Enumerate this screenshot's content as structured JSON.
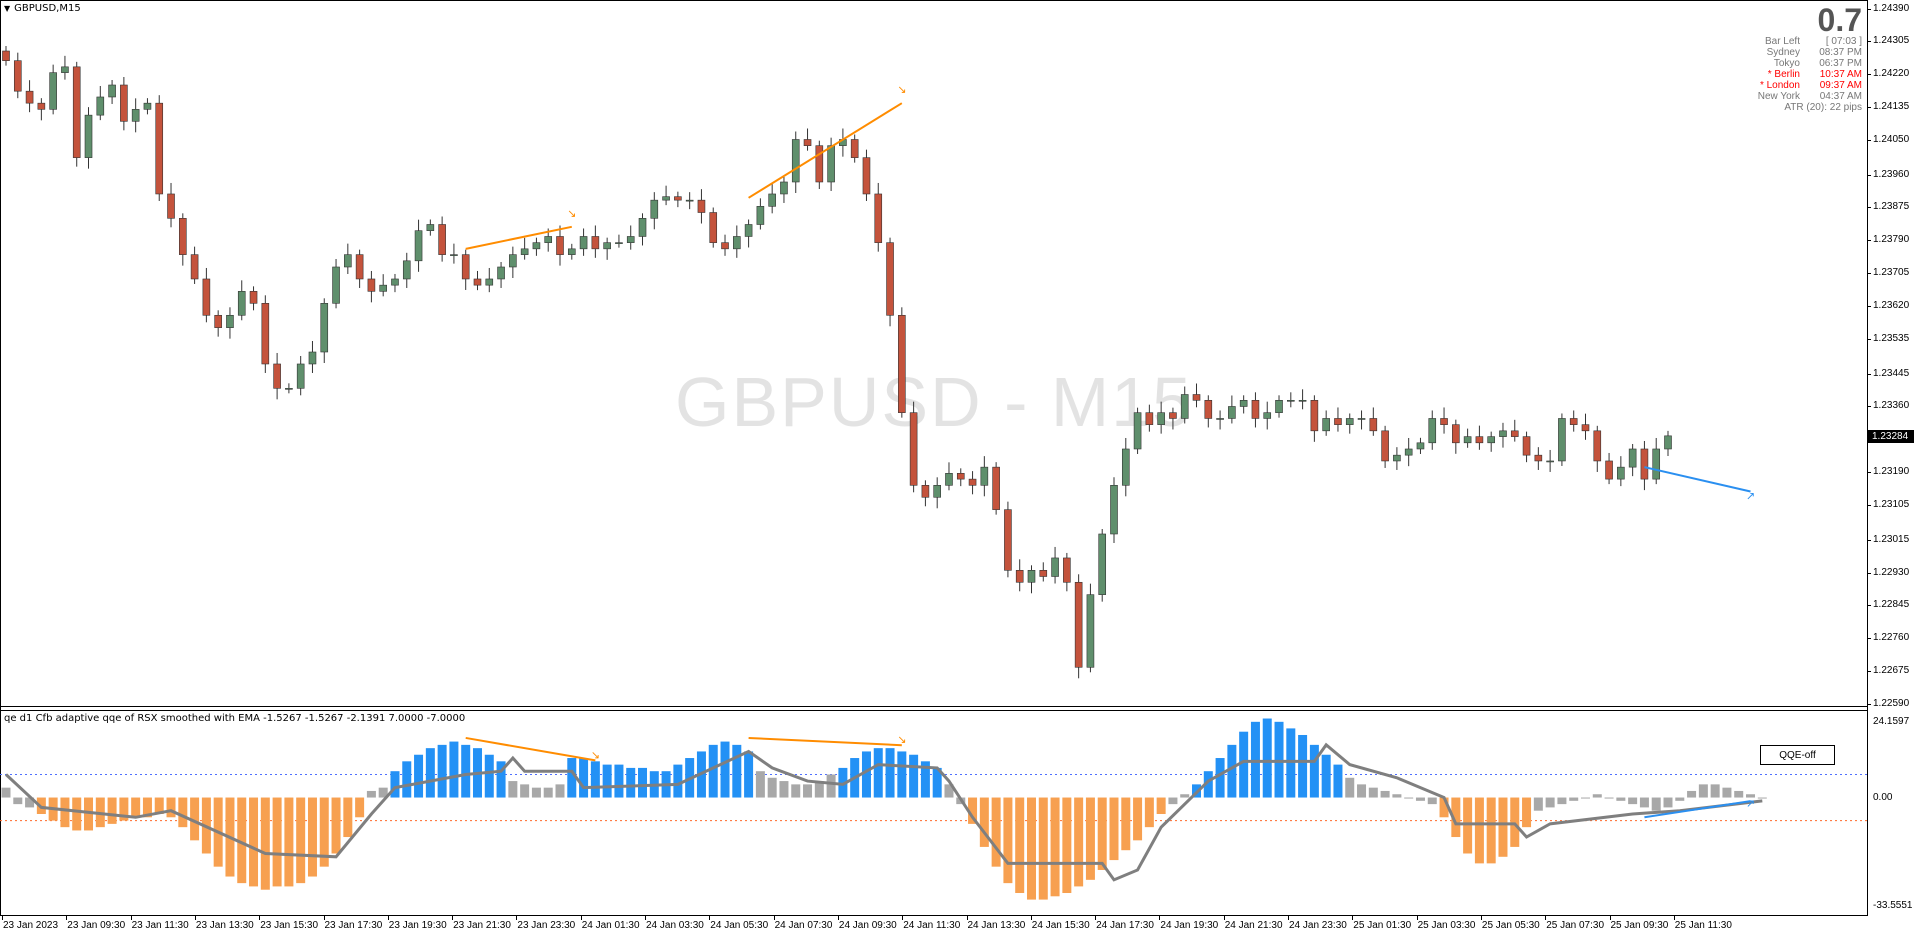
{
  "window": {
    "symbol_title": "GBPUSD,M15",
    "watermark": "GBPUSD - M15"
  },
  "info_panel": {
    "spread": "0.7",
    "rows": [
      {
        "label": "Bar Left",
        "value": "[ 07:03 ]",
        "highlight": false
      },
      {
        "label": "Sydney",
        "value": "08:37 PM",
        "highlight": false
      },
      {
        "label": "Tokyo",
        "value": "06:37 PM",
        "highlight": false
      },
      {
        "label": "* Berlin",
        "value": "10:37 AM",
        "highlight": true
      },
      {
        "label": "* London",
        "value": "09:37 AM",
        "highlight": true
      },
      {
        "label": "New York",
        "value": "04:37 AM",
        "highlight": false
      }
    ],
    "atr": "ATR (20): 22 pips"
  },
  "price_axis": {
    "ticks": [
      "1.24390",
      "1.24305",
      "1.24220",
      "1.24135",
      "1.24050",
      "1.23960",
      "1.23875",
      "1.23790",
      "1.23705",
      "1.23620",
      "1.23535",
      "1.23445",
      "1.23360",
      "1.23190",
      "1.23105",
      "1.23015",
      "1.22930",
      "1.22845",
      "1.22760",
      "1.22675",
      "1.22590"
    ],
    "current_price": "1.23284",
    "range": [
      1.2259,
      1.2439
    ]
  },
  "time_axis": {
    "labels": [
      "23 Jan 2023",
      "23 Jan 09:30",
      "23 Jan 11:30",
      "23 Jan 13:30",
      "23 Jan 15:30",
      "23 Jan 17:30",
      "23 Jan 19:30",
      "23 Jan 21:30",
      "23 Jan 23:30",
      "24 Jan 01:30",
      "24 Jan 03:30",
      "24 Jan 05:30",
      "24 Jan 07:30",
      "24 Jan 09:30",
      "24 Jan 11:30",
      "24 Jan 13:30",
      "24 Jan 15:30",
      "24 Jan 17:30",
      "24 Jan 19:30",
      "24 Jan 21:30",
      "24 Jan 23:30",
      "25 Jan 01:30",
      "25 Jan 03:30",
      "25 Jan 05:30",
      "25 Jan 07:30",
      "25 Jan 09:30",
      "25 Jan 11:30"
    ]
  },
  "colors": {
    "bull": "#5f8f6c",
    "bear": "#c4533c",
    "hist_up": "#2391f5",
    "hist_down": "#f7a050",
    "hist_neutral": "#a8a8a8",
    "signal_line": "#7f7f7f",
    "divergence_bear": "#ff8c00",
    "divergence_bull": "#2a8ff0",
    "level_up": "#4f6fff",
    "level_down": "#ff6a2a"
  },
  "chart_data": [
    {
      "type": "candlestick",
      "title": "GBPUSD,M15",
      "closes": [
        1.24255,
        1.24176,
        1.24145,
        1.24129,
        1.24224,
        1.24239,
        1.24004,
        1.24114,
        1.24161,
        1.24192,
        1.24098,
        1.24129,
        1.24145,
        1.2391,
        1.23847,
        1.23753,
        1.2369,
        1.23596,
        1.23564,
        1.23596,
        1.23658,
        1.23627,
        1.2347,
        1.23407,
        1.23407,
        1.2347,
        1.23501,
        1.23627,
        1.23721,
        1.23753,
        1.2369,
        1.23658,
        1.23674,
        1.2369,
        1.23737,
        1.23815,
        1.23831,
        1.23753,
        1.23753,
        1.2369,
        1.23674,
        1.2369,
        1.23721,
        1.23753,
        1.23768,
        1.23784,
        1.238,
        1.23753,
        1.23768,
        1.238,
        1.23768,
        1.23784,
        1.23784,
        1.238,
        1.23847,
        1.23894,
        1.23903,
        1.23894,
        1.23894,
        1.23862,
        1.23784,
        1.23768,
        1.238,
        1.23831,
        1.23878,
        1.2391,
        1.23941,
        1.24051,
        1.24035,
        1.23941,
        1.24035,
        1.24051,
        1.24004,
        1.2391,
        1.23784,
        1.23596,
        1.23344,
        1.23156,
        1.23125,
        1.23156,
        1.23187,
        1.23172,
        1.23156,
        1.23203,
        1.23093,
        1.22936,
        1.22905,
        1.22936,
        1.2292,
        1.22968,
        1.22905,
        1.22685,
        1.22873,
        1.2303,
        1.23156,
        1.2325,
        1.23344,
        1.23313,
        1.23344,
        1.23329,
        1.23391,
        1.23376,
        1.23329,
        1.23329,
        1.2336,
        1.23376,
        1.23329,
        1.23344,
        1.23376,
        1.23376,
        1.23376,
        1.23297,
        1.23329,
        1.23313,
        1.23329,
        1.23329,
        1.23297,
        1.23219,
        1.23234,
        1.2325,
        1.23266,
        1.23329,
        1.23313,
        1.23266,
        1.23282,
        1.23266,
        1.23282,
        1.23297,
        1.23282,
        1.23234,
        1.23219,
        1.23219,
        1.23329,
        1.23313,
        1.23297,
        1.23219,
        1.23172,
        1.23203,
        1.2325,
        1.23172,
        1.2325,
        1.23284
      ],
      "first_open": 1.2428,
      "divergences": [
        {
          "from": [
            39,
            1.23768
          ],
          "to": [
            48,
            1.23825
          ],
          "kind": "bearish"
        },
        {
          "from": [
            63,
            1.239
          ],
          "to": [
            76,
            1.24145
          ],
          "kind": "bearish"
        },
        {
          "from": [
            139,
            1.23203
          ],
          "to": [
            148,
            1.2314
          ],
          "kind": "bullish"
        }
      ]
    },
    {
      "type": "bar+line",
      "title": "qe d1 Cfb adaptive qqe of RSX smoothed with EMA -1.5267 -1.5267 -2.1391 7.0000 -7.0000",
      "ylim": [
        -33.5551,
        24.1597
      ],
      "ytick_labels": [
        "24.1597",
        "0.00",
        "-33.5551"
      ],
      "levels": [
        7.0,
        -7.0
      ],
      "histogram": [
        3,
        -2,
        -3,
        -5,
        -7,
        -9,
        -10,
        -10,
        -9,
        -8,
        -7,
        -6,
        -6,
        -5,
        -6,
        -9,
        -13,
        -17,
        -21,
        -24,
        -26,
        -27,
        -28,
        -27,
        -27,
        -26,
        -24,
        -21,
        -17,
        -12,
        -6,
        2,
        3,
        8,
        11,
        13,
        15,
        16,
        17,
        16,
        15,
        13,
        11,
        5,
        4,
        3,
        3,
        4,
        12,
        12,
        11,
        10,
        10,
        9,
        9,
        8,
        8,
        10,
        12,
        14,
        16,
        17,
        16,
        14,
        8,
        6,
        5,
        4,
        4,
        5,
        7,
        9,
        12,
        14,
        15,
        15,
        14,
        13,
        11,
        9,
        4,
        -2,
        -8,
        -15,
        -21,
        -26,
        -29,
        -31,
        -31,
        -30,
        -29,
        -27,
        -25,
        -22,
        -19,
        -16,
        -13,
        -9,
        -5,
        -2,
        1,
        4,
        8,
        12,
        16,
        20,
        23,
        24,
        23,
        21,
        19,
        16,
        13,
        10,
        6,
        4,
        3,
        2,
        1,
        0,
        -1,
        -2,
        -6,
        -12,
        -17,
        -20,
        -20,
        -18,
        -15,
        -9,
        -4,
        -3,
        -2,
        -1,
        0,
        1,
        0,
        -1,
        -2,
        -3,
        -4,
        -3,
        -1,
        2,
        4,
        4,
        3,
        2,
        1,
        0
      ],
      "histogram_states": [
        {
          "from": 0,
          "to": 2,
          "state": "neutral"
        },
        {
          "from": 3,
          "to": 30,
          "state": "down"
        },
        {
          "from": 31,
          "to": 32,
          "state": "neutral"
        },
        {
          "from": 33,
          "to": 42,
          "state": "up"
        },
        {
          "from": 43,
          "to": 47,
          "state": "neutral"
        },
        {
          "from": 48,
          "to": 63,
          "state": "up"
        },
        {
          "from": 64,
          "to": 70,
          "state": "neutral"
        },
        {
          "from": 71,
          "to": 79,
          "state": "up"
        },
        {
          "from": 80,
          "to": 81,
          "state": "neutral"
        },
        {
          "from": 82,
          "to": 98,
          "state": "down"
        },
        {
          "from": 99,
          "to": 100,
          "state": "neutral"
        },
        {
          "from": 101,
          "to": 113,
          "state": "up"
        },
        {
          "from": 114,
          "to": 121,
          "state": "neutral"
        },
        {
          "from": 122,
          "to": 129,
          "state": "down"
        },
        {
          "from": 130,
          "to": 149,
          "state": "neutral"
        }
      ],
      "line_points": [
        [
          0,
          7
        ],
        [
          3,
          -3
        ],
        [
          11,
          -6
        ],
        [
          14,
          -4
        ],
        [
          22,
          -17
        ],
        [
          28,
          -18
        ],
        [
          31,
          -5
        ],
        [
          33,
          3
        ],
        [
          39,
          7
        ],
        [
          42,
          8
        ],
        [
          43,
          12
        ],
        [
          44,
          8
        ],
        [
          48,
          8
        ],
        [
          49,
          3
        ],
        [
          57,
          4
        ],
        [
          63,
          14
        ],
        [
          65,
          9
        ],
        [
          68,
          5
        ],
        [
          71,
          4
        ],
        [
          74,
          10
        ],
        [
          79,
          9
        ],
        [
          80,
          5
        ],
        [
          82,
          -6
        ],
        [
          85,
          -20
        ],
        [
          93,
          -20
        ],
        [
          94,
          -25
        ],
        [
          96,
          -22
        ],
        [
          98,
          -9
        ],
        [
          102,
          5
        ],
        [
          105,
          11
        ],
        [
          111,
          11
        ],
        [
          112,
          16
        ],
        [
          114,
          10
        ],
        [
          118,
          6
        ],
        [
          122,
          0
        ],
        [
          123,
          -8
        ],
        [
          128,
          -8
        ],
        [
          129,
          -12
        ],
        [
          131,
          -8
        ],
        [
          138,
          -5
        ],
        [
          142,
          -4
        ],
        [
          149,
          -1
        ]
      ],
      "divergences": [
        {
          "from": [
            39,
            18.1
          ],
          "to": [
            50,
            11.3
          ],
          "kind": "bearish"
        },
        {
          "from": [
            63,
            18.1
          ],
          "to": [
            76,
            15.9
          ],
          "kind": "bearish"
        },
        {
          "from": [
            139,
            -6.0
          ],
          "to": [
            148,
            -1.1
          ],
          "kind": "bullish"
        }
      ]
    }
  ],
  "indicator": {
    "button_label": "QQE-off"
  }
}
